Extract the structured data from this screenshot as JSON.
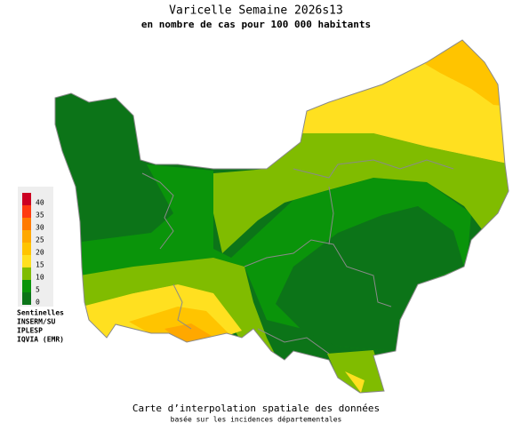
{
  "header": {
    "title": "Varicelle Semaine 2026s13",
    "subtitle": "en nombre de cas pour 100 000 habitants"
  },
  "legend": {
    "items": [
      {
        "label": "40",
        "color": "#cc0022"
      },
      {
        "label": "35",
        "color": "#ff3a10"
      },
      {
        "label": "30",
        "color": "#ff7a00"
      },
      {
        "label": "25",
        "color": "#ffa800"
      },
      {
        "label": "20",
        "color": "#ffc400"
      },
      {
        "label": "15",
        "color": "#ffe020"
      },
      {
        "label": "10",
        "color": "#80bc00"
      },
      {
        "label": "5",
        "color": "#0a940a"
      },
      {
        "label": "0",
        "color": "#0c7418"
      }
    ]
  },
  "sources": [
    "Sentinelles",
    "INSERM/SU",
    "IPLESP",
    "IQVIA (EMR)"
  ],
  "footer": {
    "line1": "Carte d’interpolation spatiale des données",
    "line2": "basée sur les incidences départementales"
  }
}
